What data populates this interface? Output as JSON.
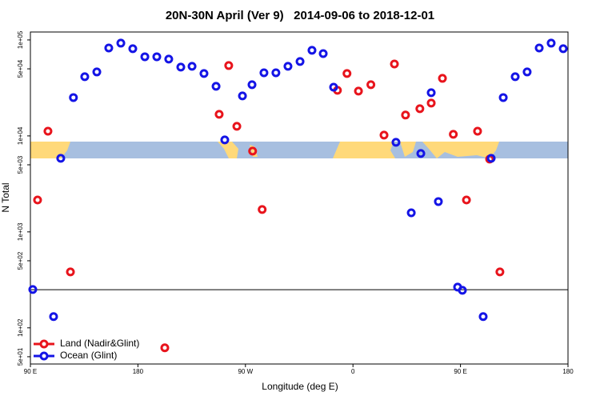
{
  "chart_data": {
    "type": "scatter",
    "title": "20N-30N April (Ver 9)   2014-09-06 to 2018-12-01",
    "x_label": "Longitude (deg E)",
    "y_label": "N Total",
    "xlim": [
      90,
      540
    ],
    "xticks": [
      {
        "value": 90,
        "label": "90 E"
      },
      180,
      {
        "value": 270,
        "label": "90 W"
      },
      {
        "value": 360,
        "label": "0"
      },
      {
        "value": 450,
        "label": "90 E"
      },
      {
        "value": 540,
        "label": "180"
      }
    ],
    "y_log": true,
    "ylim": [
      42,
      121000
    ],
    "yticks": [
      {
        "value": 50,
        "label": "5e+01"
      },
      {
        "value": 100,
        "label": "1e+02"
      },
      {
        "value": 500,
        "label": "5e+02"
      },
      {
        "value": 1000,
        "label": "1e+03"
      },
      {
        "value": 5000,
        "label": "5e+03"
      },
      {
        "value": 10000,
        "label": "1e+04"
      },
      {
        "value": 50000,
        "label": "5e+04"
      },
      {
        "value": 100000,
        "label": "1e+05"
      }
    ],
    "reference_line": 250,
    "legend": "lower left",
    "series": [
      {
        "name": "Land (Nadir&Glint)",
        "color": "#e8141c",
        "x": [
          96,
          104.7,
          123.5,
          202.5,
          248,
          256,
          262.8,
          276,
          284,
          347,
          355,
          364.6,
          375,
          386,
          394.7,
          404,
          416,
          425.5,
          434.9,
          444,
          455,
          464.3,
          474.4,
          483
        ],
        "values": [
          2150,
          11200,
          383,
          62,
          16800,
          54100,
          12600,
          6950,
          1710,
          29900,
          44700,
          29300,
          34200,
          10200,
          56200,
          16500,
          19200,
          22000,
          39800,
          10400,
          2150,
          11200,
          5730,
          383
        ]
      },
      {
        "name": "Ocean (Glint)",
        "color": "#1414e6",
        "x": [
          92,
          109.4,
          115.4,
          126,
          135.5,
          145.6,
          155.6,
          165.7,
          175.7,
          185.8,
          195.8,
          205.8,
          215.9,
          225.3,
          235.3,
          245.4,
          252.7,
          267.5,
          275.5,
          285.5,
          295.5,
          305.6,
          315.7,
          325.7,
          335.1,
          343.8,
          396,
          408.8,
          416.8,
          425.5,
          431.5,
          447.6,
          451.6,
          469,
          475.7,
          485.8,
          495.8,
          505.8,
          515.9,
          525.9,
          536
        ],
        "values": [
          251,
          131,
          5840,
          25100,
          41400,
          46400,
          82500,
          92600,
          81000,
          66800,
          66800,
          63100,
          52100,
          53100,
          44700,
          32900,
          9090,
          26100,
          34200,
          45500,
          45500,
          53100,
          59600,
          78000,
          72100,
          32200,
          8580,
          1580,
          6560,
          28200,
          2070,
          266,
          246,
          131,
          5840,
          25100,
          41400,
          46400,
          82500,
          92600,
          81000
        ]
      }
    ]
  }
}
